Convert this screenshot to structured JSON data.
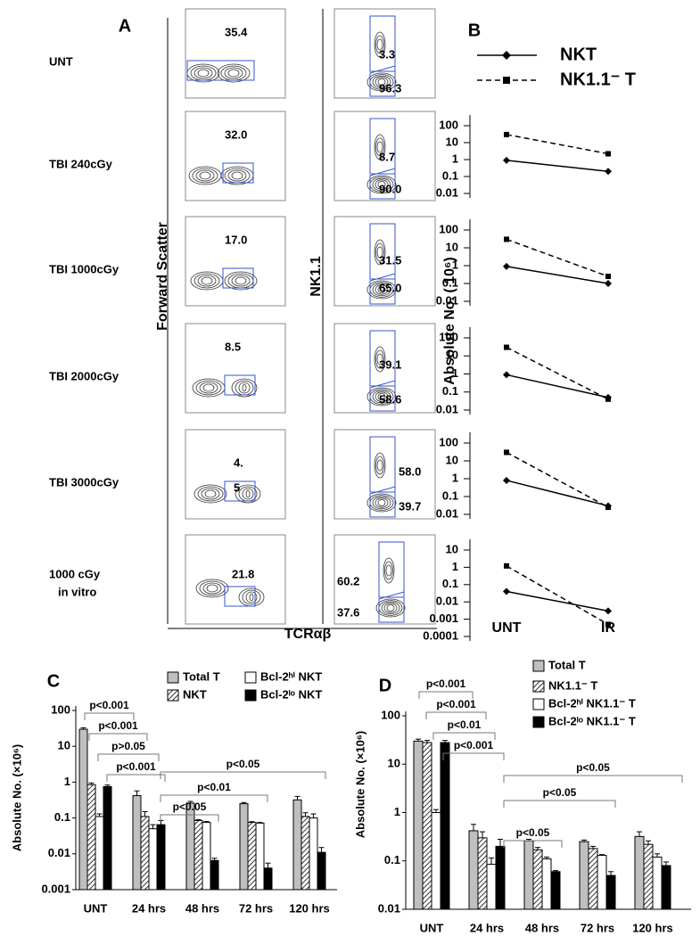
{
  "panel_a": {
    "label": "A",
    "x_label": "TCRαβ",
    "left_y_label": "Forward Scatter",
    "right_y_label": "NK1.1",
    "rows": [
      {
        "condition": [
          "UNT"
        ],
        "left": [
          "35.4"
        ],
        "right": [
          "3.3",
          "96.3"
        ]
      },
      {
        "condition": [
          "TBI 240cGy"
        ],
        "left": [
          "32.0"
        ],
        "right": [
          "8.7",
          "90.0"
        ]
      },
      {
        "condition": [
          "TBI 1000cGy"
        ],
        "left": [
          "17.0"
        ],
        "right": [
          "31.5",
          "65.0"
        ]
      },
      {
        "condition": [
          "TBI 2000cGy"
        ],
        "left": [
          "8.5"
        ],
        "right": [
          "39.1",
          "58.6"
        ]
      },
      {
        "condition": [
          "TBI 3000cGy"
        ],
        "left": [
          "4.",
          "5"
        ],
        "right": [
          "58.0",
          "39.7"
        ]
      },
      {
        "condition": [
          "1000 cGy",
          "in vitro"
        ],
        "left": [
          "21.8"
        ],
        "right": [
          "60.2",
          "37.6"
        ]
      }
    ]
  },
  "chart_data": [
    {
      "type": "line",
      "label": "B",
      "log_y": true,
      "ylabel": "Absolute No. ( 10⁶)",
      "categories": [
        "UNT",
        "IR"
      ],
      "series": [
        {
          "name": "NKT",
          "color": "#000000",
          "dashed": false,
          "marker": "diamond"
        },
        {
          "name": "NK1.1⁻ T",
          "color": "#000000",
          "dashed": true,
          "marker": "square"
        }
      ],
      "panels": [
        {
          "ylim": [
            0.01,
            100
          ],
          "yticks": [
            100,
            10,
            1,
            0.1,
            0.01
          ],
          "values": [
            [
              0.9,
              0.2
            ],
            [
              30,
              2.2
            ]
          ]
        },
        {
          "ylim": [
            0.01,
            100
          ],
          "yticks": [
            100,
            10,
            1,
            0.1,
            0.01
          ],
          "values": [
            [
              0.9,
              0.1
            ],
            [
              30,
              0.25
            ]
          ]
        },
        {
          "ylim": [
            0.01,
            100
          ],
          "yticks": [
            100,
            10,
            1,
            0.1,
            0.01
          ],
          "values": [
            [
              0.9,
              0.05
            ],
            [
              30,
              0.04
            ]
          ]
        },
        {
          "ylim": [
            0.01,
            100
          ],
          "yticks": [
            100,
            10,
            1,
            0.1,
            0.01
          ],
          "values": [
            [
              0.8,
              0.03
            ],
            [
              30,
              0.025
            ]
          ]
        },
        {
          "ylim": [
            0.0001,
            10
          ],
          "yticks": [
            10,
            1,
            0.1,
            0.01,
            0.001,
            0.0001
          ],
          "values": [
            [
              0.04,
              0.003
            ],
            [
              1.2,
              0.0005
            ]
          ]
        }
      ]
    },
    {
      "type": "bar",
      "label": "C",
      "log_y": true,
      "ylabel": "Absolute No. (×10⁶)",
      "categories": [
        "UNT",
        "24 hrs",
        "48 hrs",
        "72 hrs",
        "120 hrs"
      ],
      "ylim": [
        0.001,
        100
      ],
      "yticks": [
        100,
        10,
        1,
        0.1,
        0.01,
        0.001
      ],
      "series": [
        {
          "name": "Total T",
          "color": "#bfbfbf",
          "values": [
            30,
            0.42,
            0.26,
            0.25,
            0.32
          ],
          "errors": [
            3,
            0.15,
            0.03,
            0.02,
            0.08
          ]
        },
        {
          "name": "NKT",
          "color": "#000000",
          "hatched": true,
          "values": [
            0.85,
            0.11,
            0.085,
            0.075,
            0.11
          ],
          "errors": [
            0.1,
            0.04,
            0.005,
            0.004,
            0.03
          ]
        },
        {
          "name": "Bcl-2ʰⁱ NKT",
          "color": "#ffffff",
          "values": [
            0.11,
            0.05,
            0.075,
            0.072,
            0.1
          ],
          "errors": [
            0.02,
            0.015,
            0.005,
            0.003,
            0.03
          ]
        },
        {
          "name": "Bcl-2ˡᵒ NKT",
          "color": "#000000",
          "values": [
            0.75,
            0.065,
            0.0065,
            0.004,
            0.011
          ],
          "errors": [
            0.08,
            0.02,
            0.001,
            0.0015,
            0.004
          ]
        }
      ],
      "comparisons": [
        "p<0.001",
        "p<0.001",
        "p>0.05",
        "p<0.001",
        "p<0.05",
        "p<0.01",
        "p<0.05"
      ]
    },
    {
      "type": "bar",
      "label": "D",
      "log_y": true,
      "ylabel": "Absolute No. (×10⁶)",
      "categories": [
        "UNT",
        "24 hrs",
        "48 hrs",
        "72 hrs",
        "120 hrs"
      ],
      "ylim": [
        0.01,
        100
      ],
      "yticks": [
        100,
        10,
        1,
        0.1,
        0.01
      ],
      "series": [
        {
          "name": "Total T",
          "color": "#bfbfbf",
          "values": [
            30,
            0.42,
            0.26,
            0.25,
            0.32
          ],
          "errors": [
            3,
            0.15,
            0.02,
            0.02,
            0.08
          ]
        },
        {
          "name": "NK1.1⁻ T",
          "color": "#000000",
          "hatched": true,
          "values": [
            28,
            0.3,
            0.17,
            0.18,
            0.22
          ],
          "errors": [
            3,
            0.1,
            0.02,
            0.02,
            0.04
          ]
        },
        {
          "name": "Bcl-2ʰⁱ NK1.1⁻ T",
          "color": "#ffffff",
          "values": [
            1.0,
            0.085,
            0.11,
            0.13,
            0.12
          ],
          "errors": [
            0.15,
            0.03,
            0.01,
            0.005,
            0.02
          ]
        },
        {
          "name": "Bcl-2ˡᵒ NK1.1⁻ T",
          "color": "#000000",
          "values": [
            28,
            0.2,
            0.06,
            0.05,
            0.08
          ],
          "errors": [
            3,
            0.08,
            0.003,
            0.01,
            0.015
          ]
        }
      ],
      "comparisons": [
        "p<0.001",
        "p<0.001",
        "p<0.01",
        "p<0.001",
        "p<0.05",
        "p<0.05",
        "p<0.05"
      ]
    }
  ]
}
